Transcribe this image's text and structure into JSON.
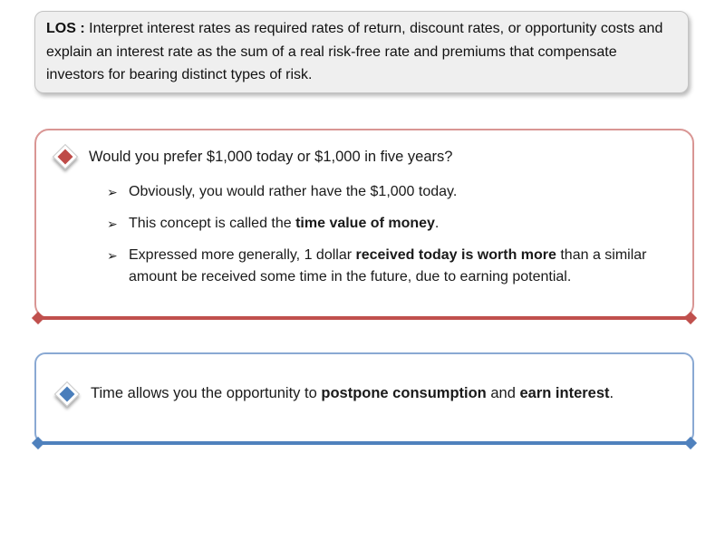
{
  "slide": {
    "bg": "#ffffff"
  },
  "los_box": {
    "label": "LOS :",
    "text": "Interpret interest rates as required rates of return, discount rates, or opportunity costs and explain an interest rate as the sum of a real risk-free rate and premiums that compensate investors for bearing distinct types of risk.",
    "bg": "#efefef",
    "border_color": "#c3c3c3"
  },
  "tvm_box": {
    "accent_color": "#c0504d",
    "border_color": "#d99694",
    "diamond_color": "#be4b48",
    "arrow_glyph": "➢",
    "main_bullet": "Would you prefer $1,000 today or $1,000 in five years?",
    "sub_bullets": [
      {
        "segments": [
          {
            "text": "Obviously, you would rather have the $1,000 today.",
            "bold": false
          }
        ]
      },
      {
        "segments": [
          {
            "text": "This concept is called the ",
            "bold": false
          },
          {
            "text": "time value of money",
            "bold": true
          },
          {
            "text": ".",
            "bold": false
          }
        ]
      },
      {
        "segments": [
          {
            "text": "Expressed more generally, 1 dollar ",
            "bold": false
          },
          {
            "text": "received today is worth more",
            "bold": true
          },
          {
            "text": " than a similar amount be received some time in the future, due to earning potential.",
            "bold": false
          }
        ]
      }
    ]
  },
  "time_box": {
    "accent_color": "#4f81bd",
    "border_color": "#8aa9d3",
    "diamond_color": "#4a7ebb",
    "segments": [
      {
        "text": "Time allows you the opportunity to ",
        "bold": false
      },
      {
        "text": "postpone consumption",
        "bold": true
      },
      {
        "text": " and ",
        "bold": false
      },
      {
        "text": "earn interest",
        "bold": true
      },
      {
        "text": ".",
        "bold": false
      }
    ]
  }
}
